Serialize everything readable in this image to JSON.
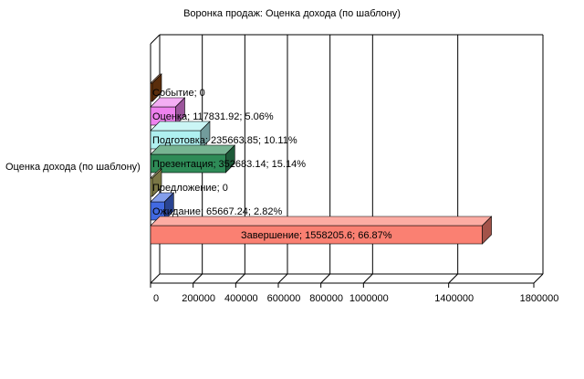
{
  "chart_data": {
    "type": "bar",
    "orientation": "horizontal",
    "three_d": true,
    "title": "Воронка продаж: Оценка дохода (по шаблону)",
    "category": "Оценка дохода (по шаблону)",
    "xlim": [
      0,
      1800000
    ],
    "ticks": [
      "0",
      "200000",
      "400000",
      "600000",
      "800000",
      "1000000",
      "1400000",
      "1800000"
    ],
    "tick_values": [
      0,
      200000,
      400000,
      600000,
      800000,
      1000000,
      1400000,
      1800000
    ],
    "grid": true,
    "series": [
      {
        "name": "Событие",
        "value": 0,
        "label": "Событие; 0",
        "color": "#8b4513"
      },
      {
        "name": "Оценка",
        "value": 117831.92,
        "label": "Оценка; 117831.92; 5.06%",
        "color": "#ee82ee"
      },
      {
        "name": "Подготовка",
        "value": 235663.85,
        "label": "Подготовка; 235663.85; 10.11%",
        "color": "#aff0f0"
      },
      {
        "name": "Презентация",
        "value": 352683.14,
        "label": "Презентация; 352683.14; 15.14%",
        "color": "#2e8b57"
      },
      {
        "name": "Предложение",
        "value": 0,
        "label": "Предложение; 0",
        "color": "#bdb76b"
      },
      {
        "name": "Ожидание",
        "value": 65667.24,
        "label": "Ожидание; 65667.24; 2.82%",
        "color": "#4169e1"
      },
      {
        "name": "Завершение",
        "value": 1558205.6,
        "label": "Завершение; 1558205.6; 66.87%",
        "color": "#fa8072"
      }
    ]
  }
}
